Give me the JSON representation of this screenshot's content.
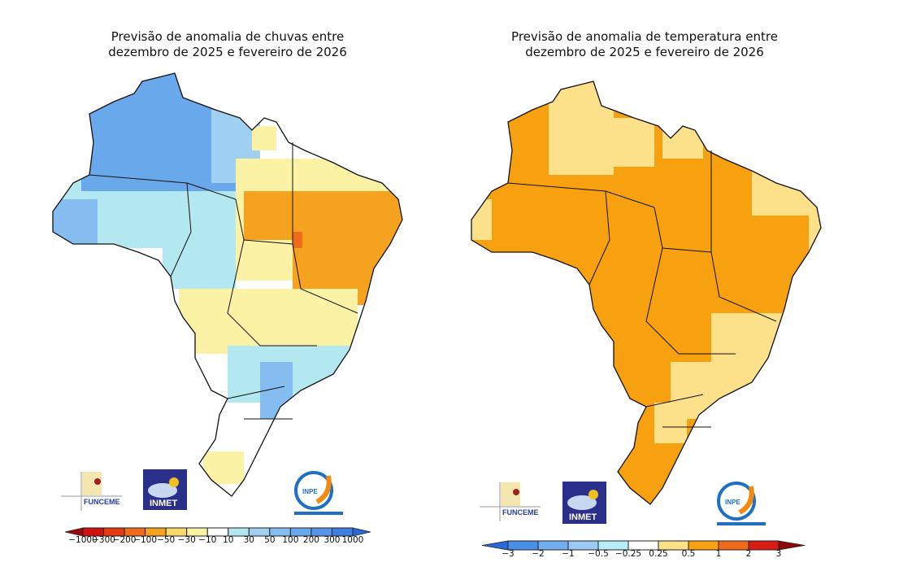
{
  "maps": [
    {
      "title_line1": "Previsão de anomalia de chuvas entre",
      "title_line2": "dezembro de 2025 e fevereiro de 2026",
      "colorbar": {
        "labels": [
          "−1000",
          "−300",
          "−200",
          "−100",
          "−50",
          "−30",
          "−10",
          "10",
          "30",
          "50",
          "100",
          "200",
          "300",
          "1000"
        ],
        "colors": [
          "#d21010",
          "#e83a12",
          "#f06a1c",
          "#f5a21e",
          "#fbd86a",
          "#fcf2a6",
          "#ffffff",
          "#b4e8f0",
          "#9fd0f2",
          "#86bdf0",
          "#6aa8ec",
          "#5796e6",
          "#3f7fe0"
        ],
        "arrow_low": "#9a0a0a",
        "arrow_high": "#2a6ad8"
      }
    },
    {
      "title_line1": "Previsão de anomalia de temperatura entre",
      "title_line2": "dezembro de 2025 e fevereiro de 2026",
      "colorbar": {
        "labels": [
          "−3",
          "−2",
          "−1",
          "−0.5",
          "−0.25",
          "0.25",
          "0.5",
          "1",
          "2",
          "3"
        ],
        "colors": [
          "#4a8ee6",
          "#74adee",
          "#9ccaf4",
          "#b8ecf6",
          "#ffffff",
          "#fde08a",
          "#f7a010",
          "#f06a1c",
          "#d81c14"
        ],
        "arrow_low": "#2a6ad8",
        "arrow_high": "#8a0808"
      }
    }
  ],
  "logos": {
    "funceme": "FUNCEME",
    "inmet": "INMET",
    "inpe": "INPE"
  }
}
